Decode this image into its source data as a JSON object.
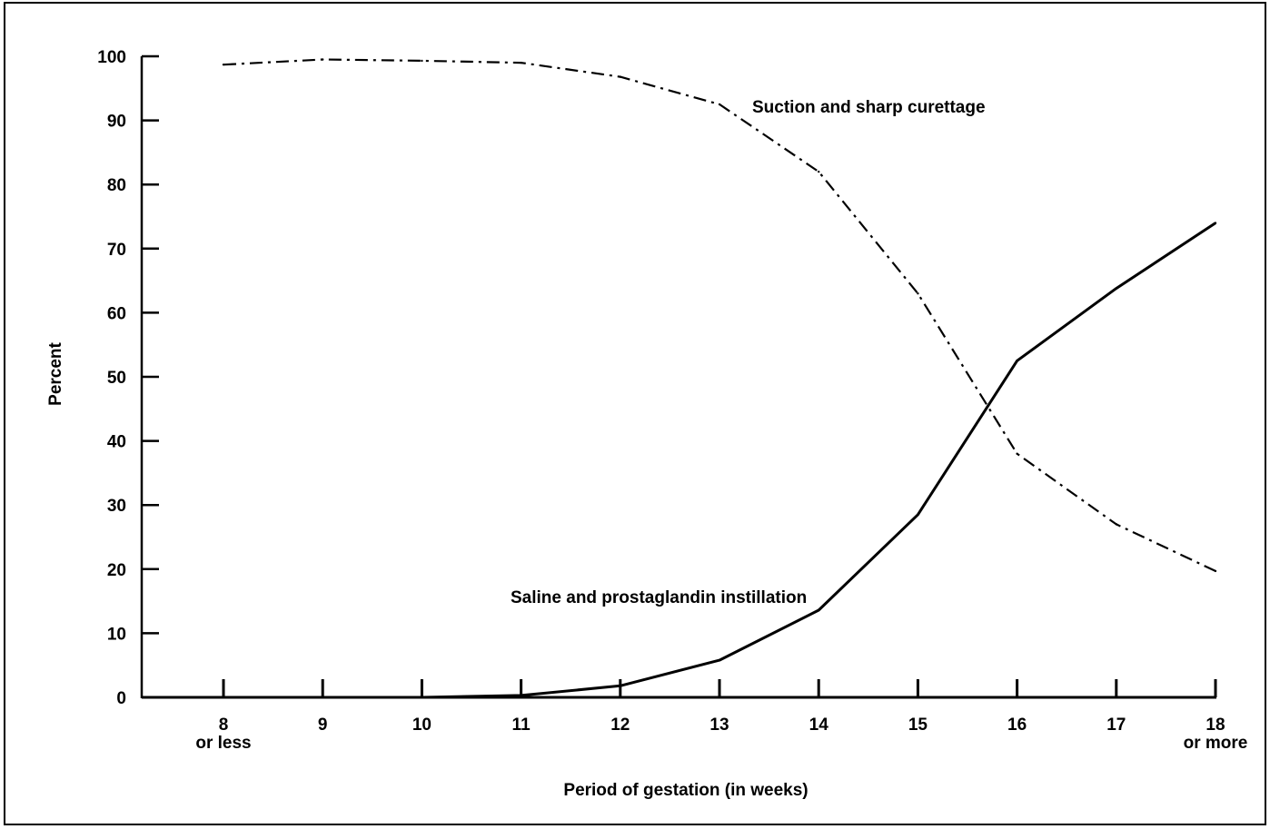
{
  "chart_data": {
    "type": "line",
    "title": "",
    "xlabel": "Period of gestation (in weeks)",
    "ylabel": "Percent",
    "ylim": [
      0,
      100
    ],
    "yticks": [
      0,
      10,
      20,
      30,
      40,
      50,
      60,
      70,
      80,
      90,
      100
    ],
    "x": [
      8,
      9,
      10,
      11,
      12,
      13,
      14,
      15,
      16,
      17,
      18
    ],
    "x_tick_labels": [
      [
        "8",
        "or less"
      ],
      [
        "9"
      ],
      [
        "10"
      ],
      [
        "11"
      ],
      [
        "12"
      ],
      [
        "13"
      ],
      [
        "14"
      ],
      [
        "15"
      ],
      [
        "16"
      ],
      [
        "17"
      ],
      [
        "18",
        "or more"
      ]
    ],
    "grid": false,
    "series": [
      {
        "name": "Suction and sharp curettage",
        "style": "dash-dot",
        "color": "#000000",
        "values": [
          98.7,
          99.5,
          99.3,
          99.0,
          96.8,
          92.5,
          82.0,
          63.0,
          38.0,
          27.0,
          19.7
        ]
      },
      {
        "name": "Saline and prostaglandin instillation",
        "style": "solid",
        "color": "#000000",
        "values": [
          0.0,
          0.0,
          0.0,
          0.3,
          1.8,
          5.8,
          13.6,
          28.5,
          52.5,
          63.8,
          74.0
        ]
      }
    ]
  }
}
